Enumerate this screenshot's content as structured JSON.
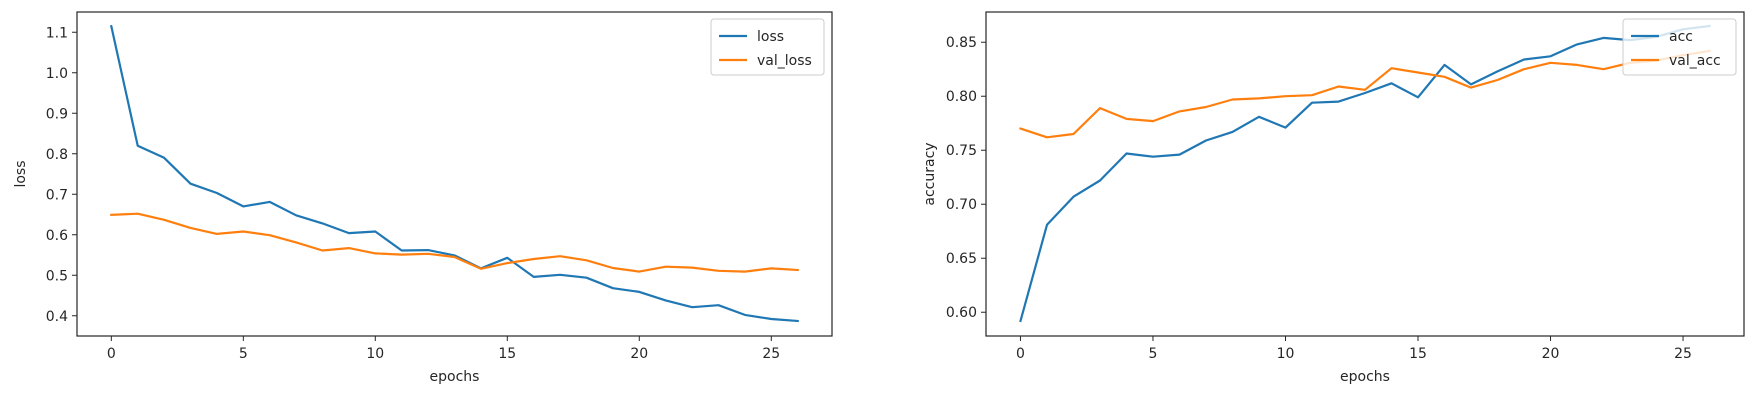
{
  "figure": {
    "colors": {
      "series_1": "#1f77b4",
      "series_2": "#ff7f0e",
      "axes": "#262626",
      "background": "#ffffff"
    }
  },
  "chart_data": [
    {
      "type": "line",
      "xlabel": "epochs",
      "ylabel": "loss",
      "xlim": [
        -1.3,
        27.3
      ],
      "ylim": [
        0.35,
        1.15
      ],
      "xticks": [
        0,
        5,
        10,
        15,
        20,
        25
      ],
      "yticks": [
        0.4,
        0.5,
        0.6,
        0.7,
        0.8,
        0.9,
        1.0,
        1.1
      ],
      "ytick_format": 1,
      "legend": "top-right",
      "grid": false,
      "x": [
        0,
        1,
        2,
        3,
        4,
        5,
        6,
        7,
        8,
        9,
        10,
        11,
        12,
        13,
        14,
        15,
        16,
        17,
        18,
        19,
        20,
        21,
        22,
        23,
        24,
        25,
        26
      ],
      "series": [
        {
          "name": "loss",
          "color": "#1f77b4",
          "values": [
            1.115,
            0.82,
            0.79,
            0.726,
            0.703,
            0.67,
            0.681,
            0.648,
            0.628,
            0.604,
            0.608,
            0.561,
            0.562,
            0.549,
            0.517,
            0.543,
            0.496,
            0.501,
            0.494,
            0.468,
            0.459,
            0.438,
            0.421,
            0.426,
            0.402,
            0.392,
            0.387
          ]
        },
        {
          "name": "val_loss",
          "color": "#ff7f0e",
          "values": [
            0.649,
            0.652,
            0.637,
            0.617,
            0.602,
            0.608,
            0.599,
            0.581,
            0.561,
            0.567,
            0.554,
            0.551,
            0.553,
            0.545,
            0.516,
            0.53,
            0.54,
            0.547,
            0.537,
            0.518,
            0.509,
            0.521,
            0.519,
            0.511,
            0.509,
            0.517,
            0.513
          ]
        }
      ]
    },
    {
      "type": "line",
      "xlabel": "epochs",
      "ylabel": "accuracy",
      "xlim": [
        -1.3,
        27.3
      ],
      "ylim": [
        0.578,
        0.878
      ],
      "xticks": [
        0,
        5,
        10,
        15,
        20,
        25
      ],
      "yticks": [
        0.6,
        0.65,
        0.7,
        0.75,
        0.8,
        0.85
      ],
      "ytick_format": 2,
      "legend": "top-right",
      "grid": false,
      "x": [
        0,
        1,
        2,
        3,
        4,
        5,
        6,
        7,
        8,
        9,
        10,
        11,
        12,
        13,
        14,
        15,
        16,
        17,
        18,
        19,
        20,
        21,
        22,
        23,
        24,
        25,
        26
      ],
      "series": [
        {
          "name": "acc",
          "color": "#1f77b4",
          "values": [
            0.592,
            0.681,
            0.707,
            0.722,
            0.747,
            0.744,
            0.746,
            0.759,
            0.767,
            0.781,
            0.771,
            0.794,
            0.795,
            0.803,
            0.812,
            0.799,
            0.829,
            0.811,
            0.823,
            0.834,
            0.837,
            0.848,
            0.854,
            0.852,
            0.855,
            0.862,
            0.865
          ]
        },
        {
          "name": "val_acc",
          "color": "#ff7f0e",
          "values": [
            0.77,
            0.762,
            0.765,
            0.789,
            0.779,
            0.777,
            0.786,
            0.79,
            0.797,
            0.798,
            0.8,
            0.801,
            0.809,
            0.806,
            0.826,
            0.822,
            0.818,
            0.808,
            0.815,
            0.825,
            0.831,
            0.829,
            0.825,
            0.831,
            0.833,
            0.838,
            0.842
          ]
        }
      ]
    }
  ]
}
